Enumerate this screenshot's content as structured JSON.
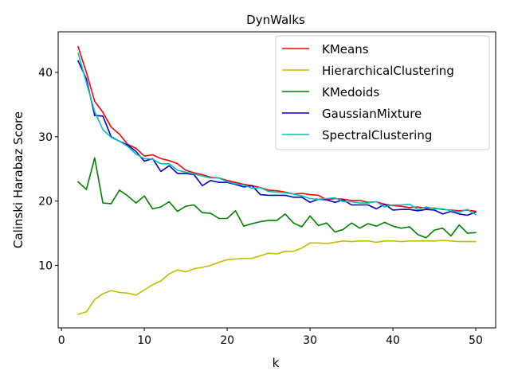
{
  "chart_data": {
    "type": "line",
    "title": "DynWalks",
    "xlabel": "k",
    "ylabel": "Calinski Harabaz Score",
    "xlim": [
      -0.4,
      52.4
    ],
    "ylim": [
      0.3,
      46.3
    ],
    "xticks": [
      0,
      10,
      20,
      30,
      40,
      50
    ],
    "yticks": [
      10,
      20,
      30,
      40
    ],
    "grid": false,
    "legend_position": "top-right",
    "x": [
      2,
      3,
      4,
      5,
      6,
      7,
      8,
      9,
      10,
      11,
      12,
      13,
      14,
      15,
      16,
      17,
      18,
      19,
      20,
      21,
      22,
      23,
      24,
      25,
      26,
      27,
      28,
      29,
      30,
      31,
      32,
      33,
      34,
      35,
      36,
      37,
      38,
      39,
      40,
      41,
      42,
      43,
      44,
      45,
      46,
      47,
      48,
      49,
      50
    ],
    "series": [
      {
        "name": "KMeans",
        "color": "#ff0000",
        "values": [
          44.0,
          40.0,
          35.5,
          33.8,
          31.5,
          30.4,
          28.8,
          28.2,
          27.0,
          27.2,
          26.6,
          26.3,
          25.8,
          24.8,
          24.4,
          24.1,
          23.7,
          23.6,
          23.2,
          22.9,
          22.6,
          22.4,
          22.1,
          21.7,
          21.6,
          21.4,
          21.1,
          21.2,
          21.0,
          20.9,
          20.2,
          20.4,
          20.3,
          20.1,
          20.1,
          19.8,
          19.9,
          19.5,
          19.3,
          19.2,
          19.0,
          19.1,
          18.9,
          18.9,
          18.7,
          18.6,
          18.5,
          18.6,
          18.4
        ]
      },
      {
        "name": "HierarchicalClustering",
        "color": "#bfbf00",
        "values": [
          2.4,
          2.8,
          4.7,
          5.6,
          6.1,
          5.8,
          5.7,
          5.4,
          6.2,
          7.0,
          7.6,
          8.7,
          9.3,
          9.0,
          9.5,
          9.7,
          10.0,
          10.5,
          10.9,
          11.0,
          11.1,
          11.1,
          11.5,
          11.9,
          11.8,
          12.2,
          12.2,
          12.7,
          13.5,
          13.5,
          13.4,
          13.6,
          13.8,
          13.7,
          13.8,
          13.8,
          13.6,
          13.8,
          13.8,
          13.7,
          13.8,
          13.8,
          13.8,
          13.8,
          13.9,
          13.8,
          13.7,
          13.7,
          13.7
        ]
      },
      {
        "name": "KMedoids",
        "color": "#008000",
        "values": [
          23.0,
          21.8,
          26.7,
          19.7,
          19.6,
          21.7,
          20.8,
          19.7,
          20.8,
          18.8,
          19.1,
          19.9,
          18.4,
          19.2,
          19.4,
          18.2,
          18.1,
          17.3,
          17.3,
          18.5,
          16.1,
          16.5,
          16.8,
          17.0,
          17.0,
          18.0,
          16.6,
          16.0,
          17.7,
          16.2,
          16.6,
          15.2,
          15.6,
          16.6,
          15.8,
          16.5,
          16.1,
          16.7,
          16.1,
          15.8,
          16.0,
          14.8,
          14.3,
          15.5,
          15.8,
          14.6,
          16.3,
          15.0,
          15.1
        ]
      },
      {
        "name": "GaussianMixture",
        "color": "#0000cc",
        "values": [
          41.8,
          39.0,
          33.3,
          33.2,
          30.0,
          29.3,
          28.7,
          27.7,
          26.2,
          26.6,
          24.6,
          25.5,
          24.3,
          24.3,
          24.1,
          22.4,
          23.2,
          22.9,
          22.9,
          22.6,
          22.2,
          22.4,
          21.0,
          20.9,
          20.9,
          20.9,
          20.6,
          20.6,
          19.8,
          20.3,
          20.2,
          19.8,
          20.2,
          19.4,
          19.4,
          19.4,
          18.8,
          19.5,
          18.6,
          18.7,
          18.7,
          18.5,
          18.7,
          18.6,
          18.0,
          18.4,
          18.0,
          17.8,
          18.3
        ]
      },
      {
        "name": "SpectralClustering",
        "color": "#00bfbf",
        "values": [
          43.0,
          38.4,
          33.9,
          31.1,
          29.9,
          29.3,
          28.5,
          27.3,
          26.6,
          26.5,
          25.8,
          25.8,
          24.8,
          24.5,
          24.2,
          23.9,
          23.6,
          23.6,
          23.0,
          22.7,
          22.5,
          22.0,
          22.1,
          21.5,
          21.4,
          21.3,
          21.1,
          20.8,
          20.4,
          20.3,
          20.4,
          20.5,
          19.9,
          19.9,
          19.7,
          19.7,
          19.9,
          19.1,
          19.4,
          19.4,
          19.5,
          18.7,
          19.1,
          18.8,
          18.8,
          18.5,
          18.3,
          18.7,
          17.9
        ]
      }
    ]
  }
}
